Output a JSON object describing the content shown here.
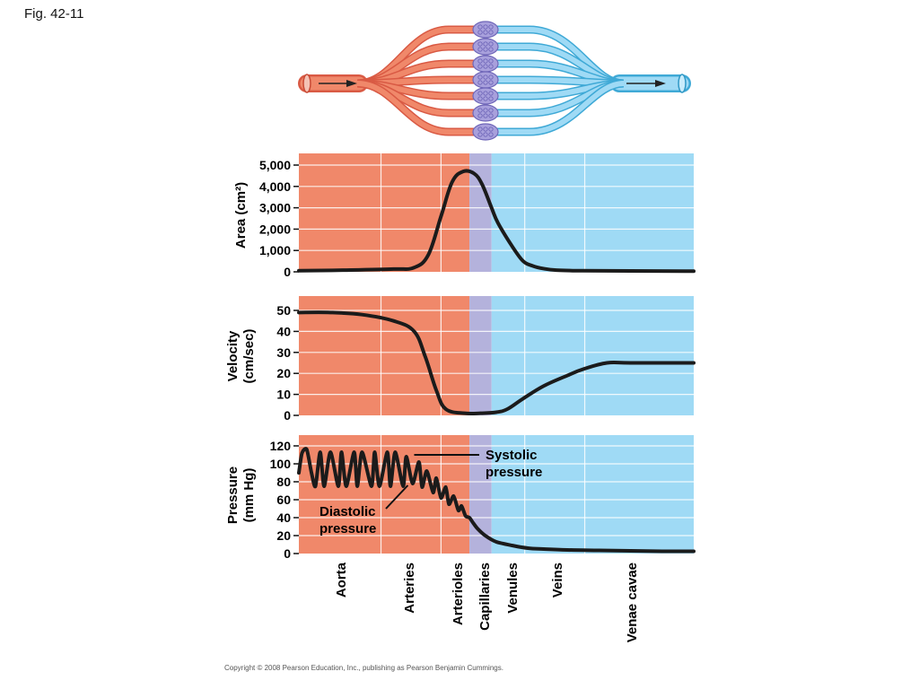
{
  "figure_label": "Fig. 42-11",
  "copyright": "Copyright © 2008 Pearson Education, Inc., publishing as Pearson Benjamin Cummings.",
  "colors": {
    "arterial": "#f0886a",
    "capillary": "#b4b2dc",
    "venous": "#9fdaf5",
    "curve": "#1b1b1b"
  },
  "segments": [
    "Aorta",
    "Arteries",
    "Arterioles",
    "Capillaries",
    "Venules",
    "Veins",
    "Venae cavae"
  ],
  "chart_data": [
    {
      "type": "line",
      "ylabel": "Area (cm²)",
      "yticks": [
        "0",
        "1,000",
        "2,000",
        "3,000",
        "4,000",
        "5,000"
      ],
      "ylim": [
        0,
        5000
      ],
      "x": [
        0,
        3,
        6,
        7.3,
        8.2,
        9.0,
        9.7,
        10.4,
        11.1,
        11.6,
        12.2,
        12.6,
        13.5,
        14.2,
        14.8,
        15.5,
        16.3,
        18,
        21,
        25
      ],
      "values": [
        50,
        80,
        130,
        200,
        800,
        2600,
        4200,
        4700,
        4600,
        4100,
        3000,
        2300,
        1200,
        500,
        280,
        150,
        80,
        50,
        40,
        30
      ],
      "grid": true
    },
    {
      "type": "line",
      "ylabel": "Velocity (cm/sec)",
      "yticks": [
        "0",
        "10",
        "20",
        "30",
        "40",
        "50"
      ],
      "ylim": [
        0,
        50
      ],
      "x": [
        0,
        2,
        4,
        6,
        7.3,
        8,
        8.7,
        9.3,
        10.5,
        11.5,
        12.5,
        13.2,
        14.2,
        15.5,
        17,
        18,
        19.5,
        21,
        25
      ],
      "values": [
        49,
        49,
        48,
        45,
        40,
        28,
        12,
        3,
        1,
        1,
        1.5,
        3,
        8,
        14,
        19,
        22,
        25,
        25,
        25
      ],
      "grid": true
    },
    {
      "type": "line",
      "ylabel": "Pressure (mm Hg)",
      "yticks": [
        "0",
        "20",
        "40",
        "60",
        "80",
        "100",
        "120"
      ],
      "ylim": [
        0,
        120
      ],
      "x": [
        0,
        0.2,
        0.5,
        0.8,
        1.05,
        1.35,
        1.6,
        2.0,
        2.5,
        2.7,
        3.0,
        3.5,
        3.7,
        4.0,
        4.6,
        4.8,
        5.1,
        5.6,
        5.8,
        6.1,
        6.6,
        6.8,
        7.2,
        7.6,
        7.8,
        8.1,
        8.5,
        8.7,
        9.0,
        9.3,
        9.5,
        9.8,
        10.1,
        10.3,
        10.55,
        10.8,
        11.0,
        11.3,
        11.8,
        12.5,
        13.5,
        14.5,
        15.5,
        17,
        19,
        21,
        23,
        25
      ],
      "values": [
        90,
        112,
        116,
        90,
        75,
        113,
        75,
        113,
        75,
        113,
        75,
        113,
        75,
        113,
        75,
        113,
        75,
        113,
        75,
        113,
        75,
        108,
        78,
        102,
        74,
        92,
        68,
        84,
        62,
        74,
        55,
        64,
        48,
        53,
        42,
        40,
        35,
        28,
        20,
        13,
        9,
        6,
        5,
        4,
        3.5,
        3,
        2.5,
        2.5
      ],
      "annotations": [
        {
          "text_lines": [
            "Systolic",
            "pressure"
          ],
          "target": [
            7.3,
            110
          ]
        },
        {
          "text_lines": [
            "Diastolic",
            "pressure"
          ],
          "target": [
            6.9,
            76
          ]
        }
      ],
      "grid": true
    }
  ]
}
